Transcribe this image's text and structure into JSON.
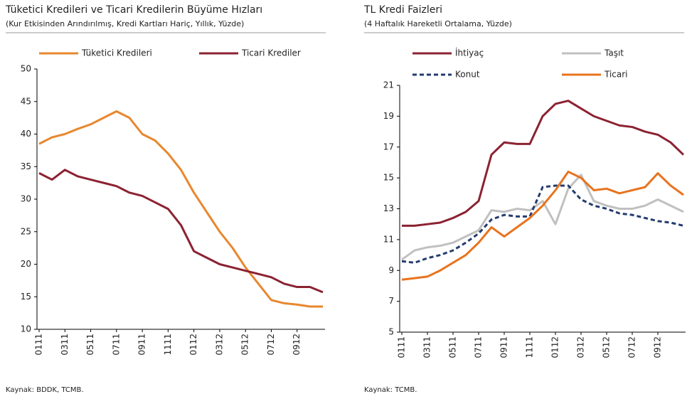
{
  "chart_data": [
    {
      "type": "line",
      "title": "Tüketici Kredileri ve Ticari Kredilerin Büyüme Hızları",
      "subtitle": "(Kur Etkisinden Arındırılmış, Kredi Kartları Hariç, Yıllık, Yüzde)",
      "source": "Kaynak: BDDK, TCMB.",
      "categories": [
        "0111",
        null,
        "0311",
        null,
        "0511",
        null,
        "0711",
        null,
        "0911",
        null,
        "1111",
        null,
        "0112",
        null,
        "0312",
        null,
        "0512",
        null,
        "0712",
        null,
        "0912",
        null,
        null
      ],
      "series": [
        {
          "name": "Tüketici Kredileri",
          "color": "#e8872e",
          "dash": false,
          "values": [
            38.5,
            39.5,
            40,
            40.8,
            41.5,
            42.5,
            43.5,
            42.5,
            40,
            39,
            37,
            34.5,
            31,
            28,
            25,
            22.5,
            19.5,
            17,
            14.5,
            14,
            13.8,
            13.5,
            13.5
          ]
        },
        {
          "name": "Ticari Krediler",
          "color": "#8b2232",
          "dash": false,
          "values": [
            34,
            33,
            34.5,
            33.5,
            33,
            32.5,
            32,
            31,
            30.5,
            29.5,
            28.5,
            26,
            22,
            21,
            20,
            19.5,
            19,
            18.5,
            18,
            17,
            16.5,
            16.5,
            15.7
          ]
        }
      ],
      "ylim": [
        10,
        50
      ],
      "yticks": [
        10,
        15,
        20,
        25,
        30,
        35,
        40,
        45,
        50
      ]
    },
    {
      "type": "line",
      "title": "TL Kredi Faizleri",
      "subtitle": "(4 Haftalık Hareketli Ortalama, Yüzde)",
      "source": "Kaynak: TCMB.",
      "categories": [
        "0111",
        null,
        "0311",
        null,
        "0511",
        null,
        "0711",
        null,
        "0911",
        null,
        "1111",
        null,
        "0112",
        null,
        "0312",
        null,
        "0512",
        null,
        "0712",
        null,
        "0912",
        null,
        null
      ],
      "series": [
        {
          "name": "İhtiyaç",
          "color": "#8b2232",
          "dash": false,
          "values": [
            11.9,
            11.9,
            12,
            12.1,
            12.4,
            12.8,
            13.5,
            16.5,
            17.3,
            17.2,
            17.2,
            19,
            19.8,
            20,
            19.5,
            19,
            18.7,
            18.4,
            18.3,
            18,
            17.8,
            17.3,
            16.5
          ]
        },
        {
          "name": "Taşıt",
          "color": "#c0c0c0",
          "dash": false,
          "values": [
            9.7,
            10.3,
            10.5,
            10.6,
            10.8,
            11.2,
            11.6,
            12.9,
            12.8,
            13,
            12.9,
            13.5,
            12,
            14.3,
            15.2,
            13.5,
            13.2,
            13,
            13,
            13.2,
            13.6,
            13.2,
            12.8
          ]
        },
        {
          "name": "Konut",
          "color": "#243c6e",
          "dash": true,
          "values": [
            9.6,
            9.5,
            9.8,
            10,
            10.3,
            10.8,
            11.4,
            12.3,
            12.6,
            12.5,
            12.5,
            14.4,
            14.5,
            14.5,
            13.6,
            13.2,
            13,
            12.7,
            12.6,
            12.4,
            12.2,
            12.1,
            11.9
          ]
        },
        {
          "name": "Ticari",
          "color": "#e8731e",
          "dash": false,
          "values": [
            8.4,
            8.5,
            8.6,
            9,
            9.5,
            10,
            10.8,
            11.8,
            11.2,
            11.8,
            12.4,
            13.2,
            14.2,
            15.4,
            15,
            14.2,
            14.3,
            14,
            14.2,
            14.4,
            15.3,
            14.5,
            13.9
          ]
        }
      ],
      "ylim": [
        5,
        21
      ],
      "yticks": [
        5,
        7,
        9,
        11,
        13,
        15,
        17,
        19,
        21
      ]
    }
  ]
}
